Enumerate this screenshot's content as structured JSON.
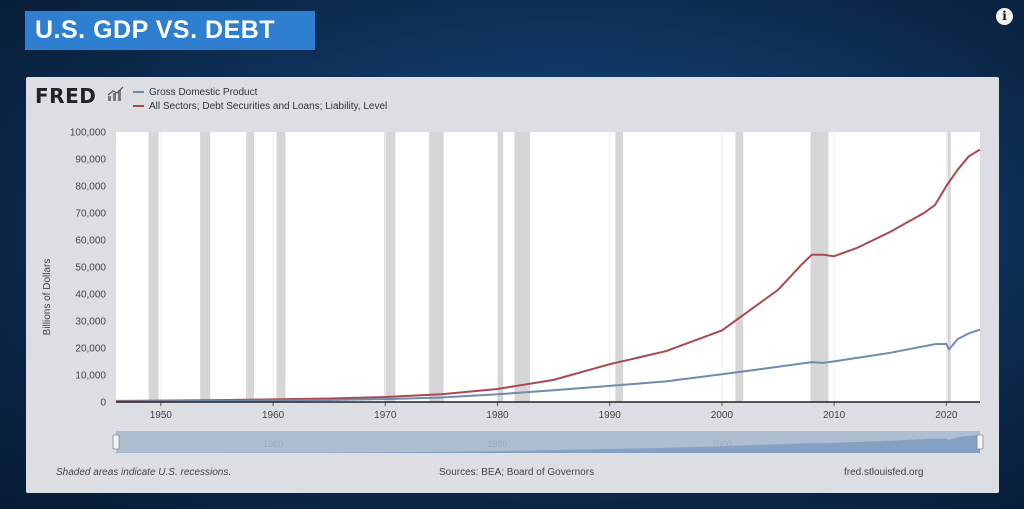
{
  "banner": {
    "title": "U.S. GDP VS. DEBT"
  },
  "info_icon": {
    "glyph": "i"
  },
  "logo": {
    "text": "FRED",
    "icon": "fred-chart-icon"
  },
  "footer": {
    "note": "Shaded areas indicate U.S. recessions.",
    "sources": "Sources: BEA; Board of Governors",
    "site": "fred.stlouisfed.org"
  },
  "navigator": {
    "tick_labels": [
      "1960",
      "1980",
      "2000"
    ]
  },
  "chart_data": {
    "type": "line",
    "title": "",
    "xlabel": "",
    "ylabel": "Billions of Dollars",
    "xlim": [
      1946,
      2023
    ],
    "ylim": [
      0,
      100000
    ],
    "x_ticks": [
      1950,
      1960,
      1970,
      1980,
      1990,
      2000,
      2010,
      2020
    ],
    "y_ticks": [
      0,
      10000,
      20000,
      30000,
      40000,
      50000,
      60000,
      70000,
      80000,
      90000,
      100000
    ],
    "y_tick_labels": [
      "0",
      "10,000",
      "20,000",
      "30,000",
      "40,000",
      "50,000",
      "60,000",
      "70,000",
      "80,000",
      "90,000",
      "100,000"
    ],
    "x_tick_labels": [
      "1950",
      "1960",
      "1970",
      "1980",
      "1990",
      "2000",
      "2010",
      "2020"
    ],
    "grid": "vertical",
    "legend_position": "top-left",
    "recessions": [
      [
        1948.9,
        1949.8
      ],
      [
        1953.5,
        1954.4
      ],
      [
        1957.6,
        1958.3
      ],
      [
        1960.3,
        1961.1
      ],
      [
        1969.9,
        1970.9
      ],
      [
        1973.9,
        1975.2
      ],
      [
        1980.0,
        1980.5
      ],
      [
        1981.5,
        1982.9
      ],
      [
        1990.5,
        1991.2
      ],
      [
        2001.2,
        2001.9
      ],
      [
        2007.9,
        2009.5
      ],
      [
        2020.1,
        2020.4
      ]
    ],
    "series": [
      {
        "name": "Gross Domestic Product",
        "color": "#6f8cab",
        "x": [
          1946,
          1950,
          1955,
          1960,
          1965,
          1970,
          1975,
          1980,
          1985,
          1990,
          1995,
          2000,
          2005,
          2008,
          2009,
          2010,
          2015,
          2019,
          2020,
          2020.25,
          2021,
          2022,
          2023
        ],
        "y": [
          230,
          300,
          430,
          540,
          740,
          1070,
          1680,
          2860,
          4340,
          5960,
          7640,
          10250,
          13040,
          14770,
          14480,
          15050,
          18220,
          21430,
          21500,
          19500,
          23300,
          25400,
          26800
        ]
      },
      {
        "name": "All Sectors; Debt Securities and Loans; Liability, Level",
        "color": "#a8494f",
        "x": [
          1946,
          1950,
          1955,
          1960,
          1965,
          1970,
          1975,
          1980,
          1985,
          1990,
          1995,
          2000,
          2005,
          2007,
          2008,
          2009,
          2010,
          2012,
          2015,
          2018,
          2019,
          2020,
          2021,
          2022,
          2023
        ],
        "y": [
          400,
          500,
          700,
          950,
          1300,
          1850,
          2900,
          4800,
          8200,
          14000,
          18800,
          26500,
          41500,
          50500,
          54500,
          54500,
          54000,
          57000,
          63000,
          70000,
          73000,
          80000,
          86000,
          91000,
          93500
        ]
      }
    ]
  }
}
